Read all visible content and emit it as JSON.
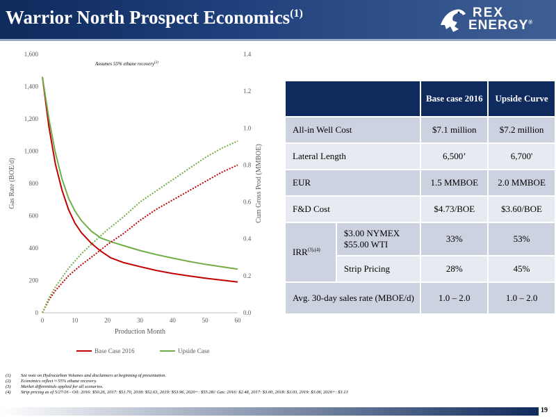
{
  "header": {
    "title": "Warrior North Prospect Economics",
    "title_sup": "(1)",
    "logo_line1": "REX",
    "logo_line2": "ENERGY",
    "logo_mark": "®"
  },
  "chart_data": {
    "type": "line",
    "annotation": "Assumes 55% ethane recovery",
    "annotation_sup": "(2)",
    "xlabel": "Production Month",
    "ylabel": "Gas Rate (BOE/d)",
    "y2label": "Cum Gross Prod (MMBOE)",
    "xlim": [
      0,
      60
    ],
    "ylim": [
      0,
      1600
    ],
    "y2lim": [
      0,
      1.4
    ],
    "xticks": [
      0,
      10,
      20,
      30,
      40,
      50,
      60
    ],
    "yticks": [
      "0",
      "200",
      "400",
      "600",
      "800",
      "1,000",
      "1,200",
      "1,400",
      "1,600"
    ],
    "y2ticks": [
      "0.0",
      "0.2",
      "0.4",
      "0.6",
      "0.8",
      "1.0",
      "1.2",
      "1.4"
    ],
    "legend_position": "bottom",
    "series": [
      {
        "name": "Base Case 2016",
        "axis": "left",
        "color": "#c00000",
        "style": "solid",
        "x": [
          0,
          2,
          4,
          6,
          8,
          10,
          12,
          15,
          18,
          21,
          25,
          30,
          35,
          40,
          45,
          50,
          55,
          60
        ],
        "y": [
          1460,
          1150,
          920,
          760,
          640,
          555,
          495,
          430,
          380,
          340,
          310,
          285,
          262,
          243,
          228,
          214,
          202,
          190
        ]
      },
      {
        "name": "Upside Case",
        "axis": "left",
        "color": "#70ad47",
        "style": "solid",
        "x": [
          0,
          2,
          4,
          6,
          8,
          10,
          12,
          15,
          18,
          21,
          25,
          30,
          35,
          40,
          45,
          50,
          55,
          60
        ],
        "y": [
          1460,
          1200,
          990,
          830,
          710,
          630,
          570,
          505,
          462,
          440,
          415,
          385,
          360,
          338,
          318,
          300,
          285,
          270
        ]
      },
      {
        "name": "",
        "axis": "right",
        "color": "#c00000",
        "style": "dotted",
        "x": [
          0,
          2,
          4,
          6,
          8,
          10,
          12,
          15,
          20,
          25,
          30,
          35,
          40,
          45,
          50,
          55,
          60
        ],
        "y": [
          0,
          0.07,
          0.12,
          0.16,
          0.2,
          0.23,
          0.26,
          0.3,
          0.37,
          0.43,
          0.5,
          0.56,
          0.61,
          0.66,
          0.71,
          0.76,
          0.8
        ]
      },
      {
        "name": "",
        "axis": "right",
        "color": "#70ad47",
        "style": "dotted",
        "x": [
          0,
          2,
          4,
          6,
          8,
          10,
          12,
          15,
          20,
          25,
          30,
          35,
          40,
          45,
          50,
          55,
          60
        ],
        "y": [
          0,
          0.08,
          0.14,
          0.19,
          0.24,
          0.28,
          0.32,
          0.37,
          0.45,
          0.52,
          0.6,
          0.66,
          0.72,
          0.78,
          0.84,
          0.89,
          0.93
        ]
      }
    ]
  },
  "table": {
    "col_headers": [
      "Base case 2016",
      "Upside Curve"
    ],
    "rows": [
      {
        "label": "All-in Well Cost",
        "base": "$7.1 million",
        "upside": "$7.2 million"
      },
      {
        "label": "Lateral Length",
        "base": "6,500’",
        "upside": "6,700'"
      },
      {
        "label": "EUR",
        "base": "1.5 MMBOE",
        "upside": "2.0 MMBOE"
      },
      {
        "label": "F&D Cost",
        "base": "$4.73/BOE",
        "upside": "$3.60/BOE"
      }
    ],
    "irr": {
      "label": "IRR",
      "label_sup": "(3),(4)",
      "sub": [
        {
          "label": "$3.00 NYMEX $55.00 WTI",
          "base": "33%",
          "upside": "53%"
        },
        {
          "label": "Strip Pricing",
          "base": "28%",
          "upside": "45%"
        }
      ]
    },
    "avg": {
      "label": "Avg. 30-day sales rate (MBOE/d)",
      "base": "1.0 – 2.0",
      "upside": "1.0 – 2.0"
    }
  },
  "footnotes": [
    {
      "num": "(1)",
      "text": "See note on Hydrocarbon Volumes and disclaimers at beginning of presentation."
    },
    {
      "num": "(2)",
      "text": "Economics reflect ≈ 55% ethane recovery."
    },
    {
      "num": "(3)",
      "text": "Market differentials applied for all scenarios."
    },
    {
      "num": "(4)",
      "text": "Strip pricing as of 5/27/16 - Oil: 2016: $50.26, 2017: $51.70, 2018: $52.63, 2019: $53.96, 2020+: $55.28// Gas: 2016: $2.48, 2017: $3.00, 2018: $3.03, 2019: $3.06, 2020+: $3.13"
    }
  ],
  "page_number": "19",
  "colors": {
    "navy": "#0f2a5c",
    "row_dark": "#cdd2e0",
    "row_light": "#e8eaf1",
    "base_red": "#c00000",
    "upside_green": "#70ad47"
  }
}
